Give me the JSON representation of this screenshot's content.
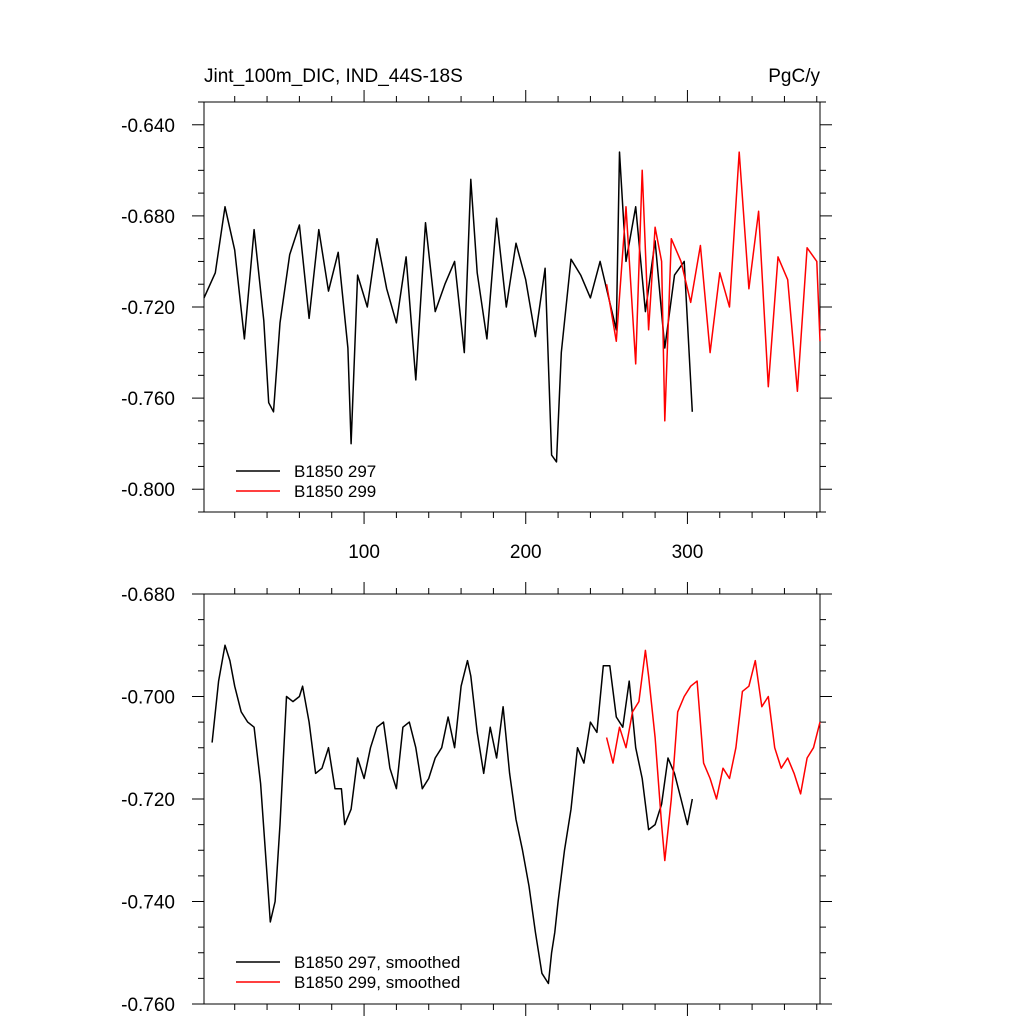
{
  "chart_data": [
    {
      "type": "line",
      "title_left": "Jint_100m_DIC, IND_44S-18S",
      "title_right": "PgC/y",
      "xlim": [
        1,
        382
      ],
      "ylim": [
        -0.81,
        -0.63
      ],
      "x_ticks": [
        100,
        200,
        300
      ],
      "x_tick_labels": [
        "100",
        "200",
        "300"
      ],
      "y_ticks": [
        -0.64,
        -0.68,
        -0.72,
        -0.76,
        -0.8
      ],
      "y_tick_labels": [
        "-0.640",
        "-0.680",
        "-0.720",
        "-0.760",
        "-0.800"
      ],
      "legend": "bottom-left",
      "series": [
        {
          "name": "B1850 297",
          "color": "#000000",
          "x": [
            1,
            8,
            14,
            20,
            26,
            32,
            38,
            41,
            44,
            48,
            54,
            60,
            66,
            72,
            78,
            84,
            90,
            92,
            96,
            102,
            108,
            114,
            120,
            126,
            132,
            138,
            144,
            150,
            156,
            162,
            166,
            170,
            176,
            182,
            188,
            194,
            200,
            206,
            212,
            216,
            219,
            222,
            228,
            234,
            240,
            246,
            252,
            256,
            258,
            262,
            268,
            274,
            280,
            286,
            292,
            298,
            303
          ],
          "values": [
            -0.716,
            -0.705,
            -0.676,
            -0.695,
            -0.734,
            -0.686,
            -0.726,
            -0.762,
            -0.766,
            -0.727,
            -0.697,
            -0.684,
            -0.725,
            -0.686,
            -0.713,
            -0.696,
            -0.738,
            -0.78,
            -0.706,
            -0.72,
            -0.69,
            -0.712,
            -0.727,
            -0.698,
            -0.752,
            -0.683,
            -0.722,
            -0.71,
            -0.7,
            -0.74,
            -0.664,
            -0.705,
            -0.734,
            -0.681,
            -0.72,
            -0.692,
            -0.708,
            -0.733,
            -0.703,
            -0.785,
            -0.788,
            -0.74,
            -0.699,
            -0.706,
            -0.716,
            -0.7,
            -0.718,
            -0.73,
            -0.652,
            -0.7,
            -0.676,
            -0.722,
            -0.691,
            -0.738,
            -0.706,
            -0.7,
            -0.766
          ]
        },
        {
          "name": "B1850 299",
          "color": "#ff0000",
          "x": [
            250,
            256,
            262,
            268,
            272,
            276,
            280,
            284,
            286,
            290,
            296,
            302,
            308,
            314,
            320,
            326,
            332,
            338,
            344,
            350,
            356,
            362,
            368,
            374,
            380,
            382
          ],
          "values": [
            -0.71,
            -0.735,
            -0.676,
            -0.745,
            -0.66,
            -0.73,
            -0.685,
            -0.7,
            -0.77,
            -0.69,
            -0.7,
            -0.718,
            -0.693,
            -0.74,
            -0.705,
            -0.72,
            -0.652,
            -0.712,
            -0.678,
            -0.755,
            -0.698,
            -0.708,
            -0.757,
            -0.694,
            -0.7,
            -0.735
          ]
        }
      ]
    },
    {
      "type": "line",
      "xlim": [
        1,
        382
      ],
      "ylim": [
        -0.76,
        -0.68
      ],
      "x_ticks": [
        100,
        200,
        300
      ],
      "y_ticks": [
        -0.68,
        -0.7,
        -0.72,
        -0.74,
        -0.76
      ],
      "y_tick_labels": [
        "-0.680",
        "-0.700",
        "-0.720",
        "-0.740",
        "-0.760"
      ],
      "legend": "bottom-left",
      "series": [
        {
          "name": "B1850 297, smoothed",
          "color": "#000000",
          "x": [
            6,
            10,
            14,
            17,
            20,
            24,
            28,
            32,
            36,
            40,
            42,
            45,
            48,
            52,
            56,
            60,
            62,
            66,
            70,
            74,
            78,
            82,
            86,
            88,
            92,
            96,
            100,
            104,
            108,
            112,
            116,
            120,
            124,
            128,
            132,
            136,
            140,
            144,
            148,
            152,
            156,
            160,
            164,
            166,
            170,
            174,
            178,
            182,
            186,
            190,
            194,
            198,
            202,
            206,
            210,
            214,
            216,
            218,
            220,
            224,
            228,
            232,
            236,
            240,
            244,
            248,
            252,
            256,
            260,
            264,
            268,
            272,
            276,
            280,
            284,
            288,
            292,
            296,
            300,
            303
          ],
          "values": [
            -0.709,
            -0.697,
            -0.69,
            -0.693,
            -0.698,
            -0.703,
            -0.705,
            -0.706,
            -0.717,
            -0.735,
            -0.744,
            -0.74,
            -0.725,
            -0.7,
            -0.701,
            -0.7,
            -0.698,
            -0.705,
            -0.715,
            -0.714,
            -0.71,
            -0.718,
            -0.718,
            -0.725,
            -0.722,
            -0.712,
            -0.716,
            -0.71,
            -0.706,
            -0.705,
            -0.714,
            -0.718,
            -0.706,
            -0.705,
            -0.71,
            -0.718,
            -0.716,
            -0.712,
            -0.71,
            -0.704,
            -0.71,
            -0.698,
            -0.693,
            -0.696,
            -0.707,
            -0.715,
            -0.706,
            -0.712,
            -0.702,
            -0.715,
            -0.724,
            -0.73,
            -0.737,
            -0.746,
            -0.754,
            -0.756,
            -0.75,
            -0.746,
            -0.74,
            -0.73,
            -0.722,
            -0.71,
            -0.713,
            -0.705,
            -0.707,
            -0.694,
            -0.694,
            -0.704,
            -0.706,
            -0.697,
            -0.71,
            -0.716,
            -0.726,
            -0.725,
            -0.721,
            -0.712,
            -0.715,
            -0.72,
            -0.725,
            -0.72
          ]
        },
        {
          "name": "B1850 299, smoothed",
          "color": "#ff0000",
          "x": [
            250,
            254,
            258,
            262,
            266,
            270,
            274,
            276,
            280,
            284,
            286,
            290,
            294,
            298,
            302,
            306,
            310,
            314,
            318,
            322,
            326,
            330,
            334,
            338,
            342,
            346,
            350,
            354,
            358,
            362,
            366,
            370,
            374,
            378,
            382
          ],
          "values": [
            -0.708,
            -0.713,
            -0.706,
            -0.71,
            -0.703,
            -0.701,
            -0.691,
            -0.696,
            -0.708,
            -0.725,
            -0.732,
            -0.72,
            -0.703,
            -0.7,
            -0.698,
            -0.697,
            -0.713,
            -0.716,
            -0.72,
            -0.714,
            -0.716,
            -0.71,
            -0.699,
            -0.698,
            -0.693,
            -0.702,
            -0.7,
            -0.71,
            -0.714,
            -0.712,
            -0.715,
            -0.719,
            -0.712,
            -0.71,
            -0.705
          ]
        }
      ]
    }
  ]
}
